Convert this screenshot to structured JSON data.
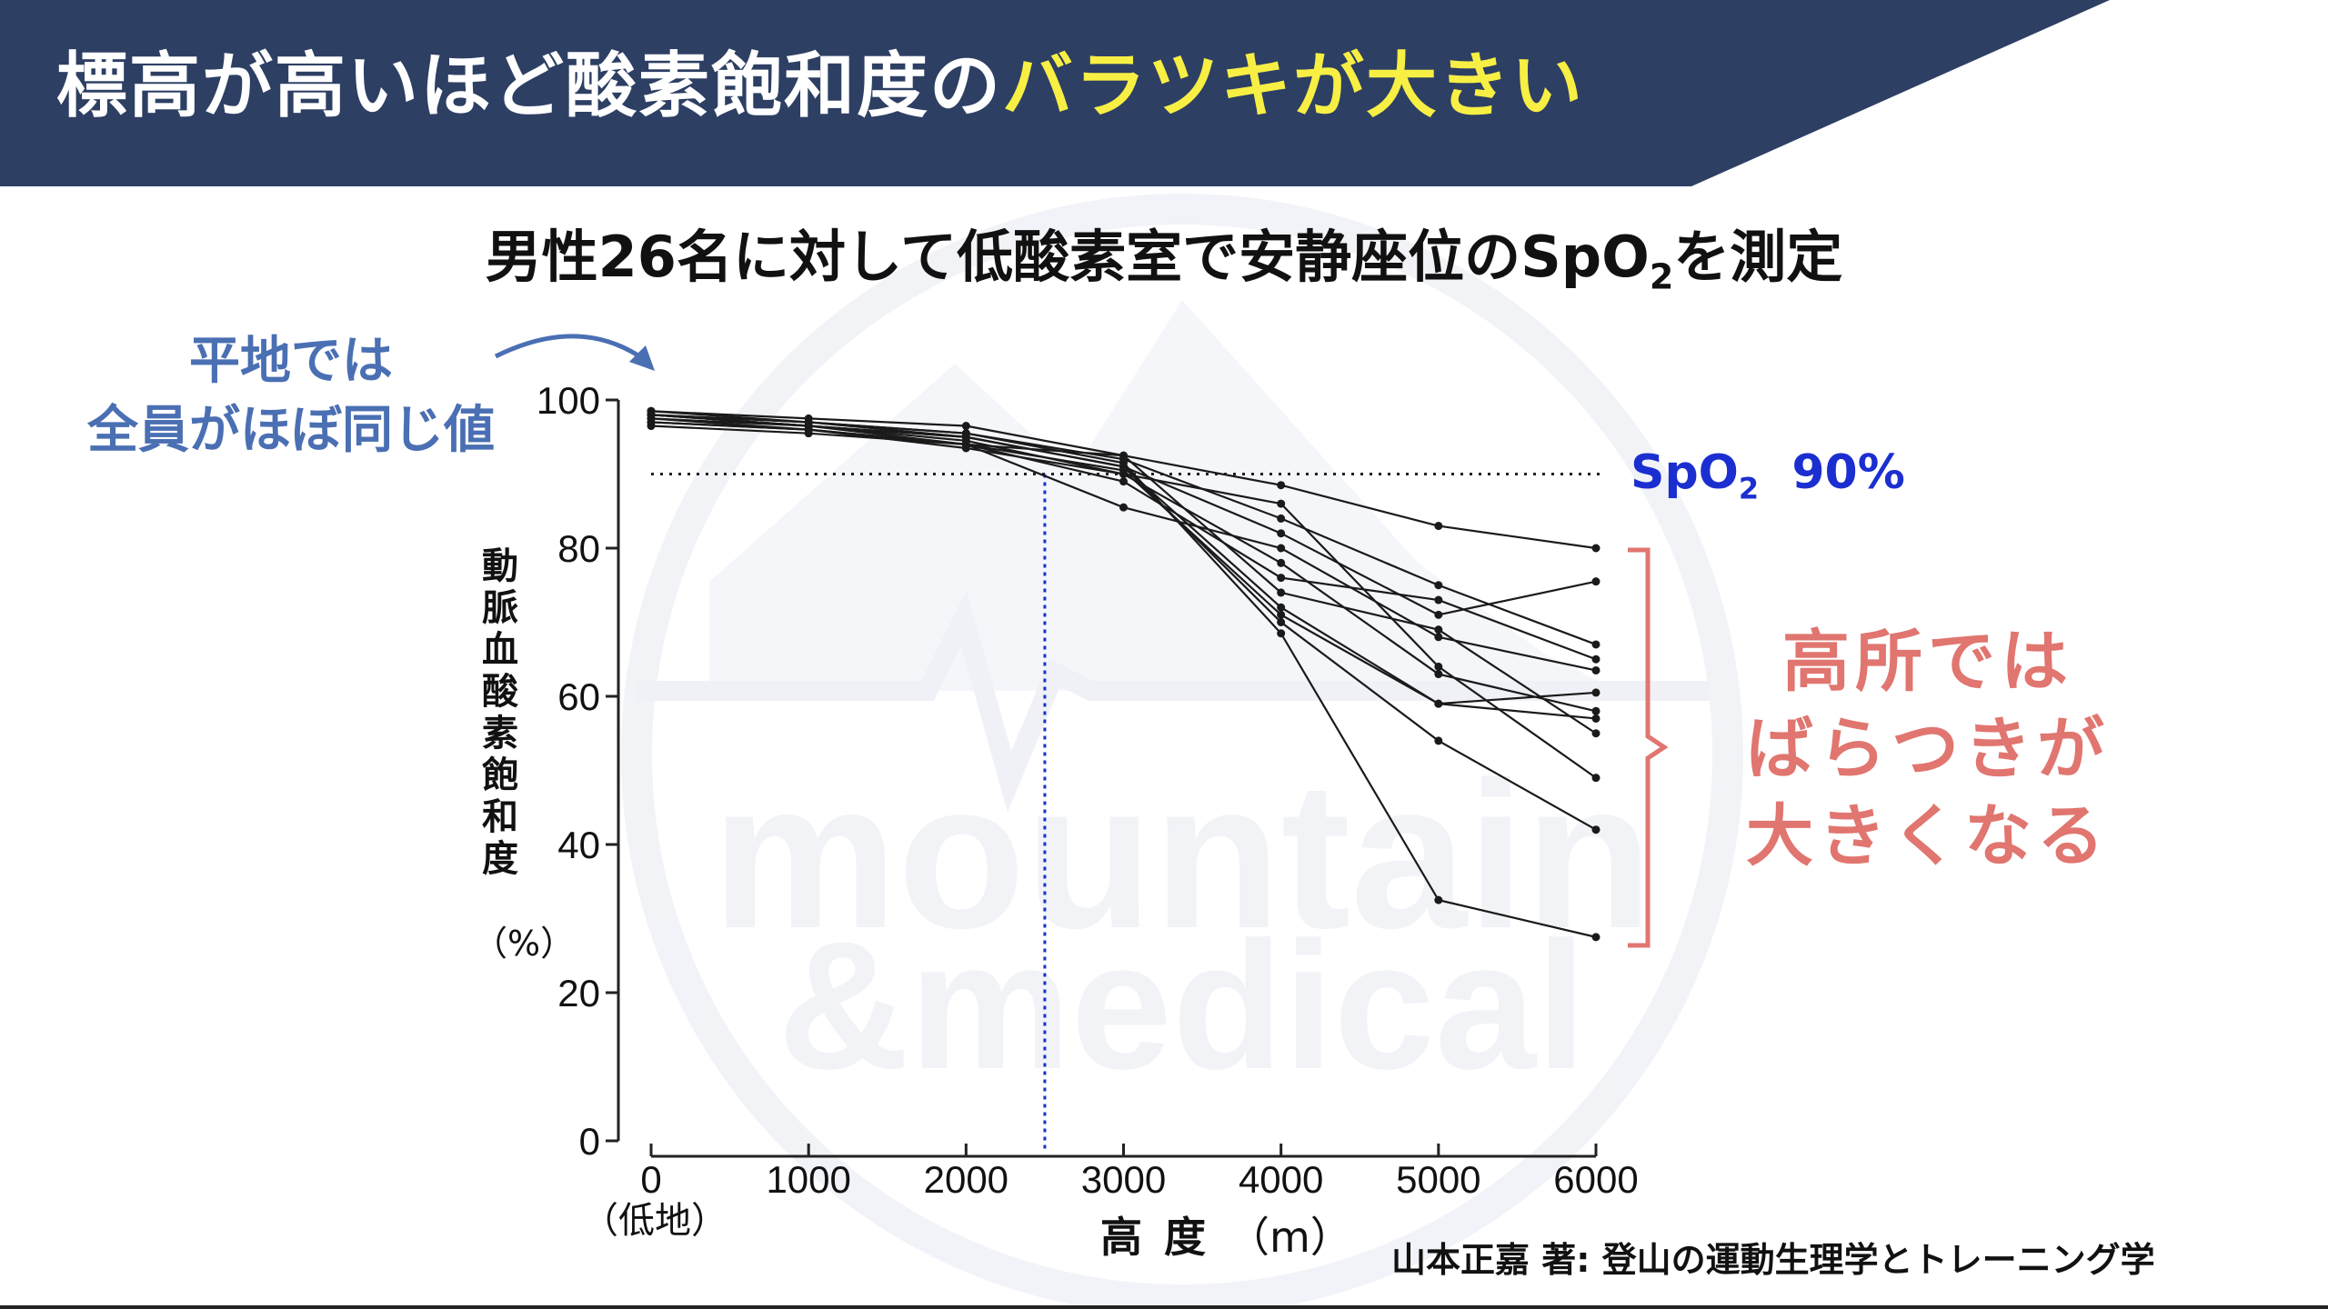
{
  "banner": {
    "bg_color": "#2d3f63",
    "title_part1": "標高が高いほど酸素飽和度の",
    "title_part2": "バラツキが大きい"
  },
  "watermark": {
    "line1": "mountain",
    "line2": "&medical"
  },
  "subtitle": {
    "before": "男性26名に対して低酸素室で安静座位の",
    "sp": "SpO",
    "sub": "2",
    "after": "を測定"
  },
  "notes": {
    "left_line1": "平地では",
    "left_line2": "全員がほぼ同じ値",
    "right_line1": "高所では",
    "right_line2": "ばらつきが",
    "right_line3": "大きくなる",
    "left_color": "#4a6fb3",
    "right_color": "#e1756f"
  },
  "spo2_label": {
    "sp": "SpO",
    "sub": "2",
    "value": "90%"
  },
  "source": "山本正嘉 著: 登山の運動生理学とトレーニング学",
  "chart_data": {
    "type": "line",
    "ylabel_chars": [
      "動",
      "脈",
      "血",
      "酸",
      "素",
      "飽",
      "和",
      "度"
    ],
    "ylabel_unit": "（%）",
    "xlabel": "高度",
    "xlabel_unit": "（m）",
    "x_first_sublabel": "（低地）",
    "x": [
      0,
      1000,
      2000,
      3000,
      4000,
      5000,
      6000
    ],
    "xtick_labels": [
      "0",
      "1000",
      "2000",
      "3000",
      "4000",
      "5000",
      "6000"
    ],
    "ytick_labels": [
      "0",
      "20",
      "40",
      "60",
      "80",
      "100"
    ],
    "yticks": [
      0,
      20,
      40,
      60,
      80,
      100
    ],
    "xlim": [
      0,
      6000
    ],
    "ylim": [
      0,
      100
    ],
    "reference_line_y": 90,
    "reference_line_x": 2500,
    "reference_line_x_color": "#1b2fd0",
    "series": [
      {
        "values": [
          98.5,
          97.5,
          96.5,
          92.5,
          88.5,
          83,
          80
        ]
      },
      {
        "values": [
          98,
          97,
          95.5,
          92,
          84,
          75,
          67
        ]
      },
      {
        "values": [
          97.5,
          96.5,
          95,
          91,
          82,
          71,
          75.5
        ]
      },
      {
        "values": [
          98,
          96.5,
          94.5,
          90,
          78,
          63,
          58
        ]
      },
      {
        "values": [
          97,
          96,
          94,
          89,
          76,
          73,
          65
        ]
      },
      {
        "values": [
          98.5,
          97,
          95,
          91,
          72,
          59,
          57
        ]
      },
      {
        "values": [
          96.5,
          95.5,
          94,
          85.5,
          80,
          68,
          63.5
        ]
      },
      {
        "values": [
          98,
          96.5,
          95,
          91,
          70,
          54,
          42
        ]
      },
      {
        "values": [
          97.5,
          96,
          94,
          92.5,
          74,
          69,
          55
        ]
      },
      {
        "values": [
          98,
          97,
          95.5,
          91.5,
          68.5,
          32.5,
          27.5
        ]
      },
      {
        "values": [
          97,
          96,
          93.5,
          90,
          86,
          64,
          49
        ]
      },
      {
        "values": [
          98,
          96.5,
          94,
          90.5,
          71,
          59,
          60.5
        ]
      }
    ]
  }
}
